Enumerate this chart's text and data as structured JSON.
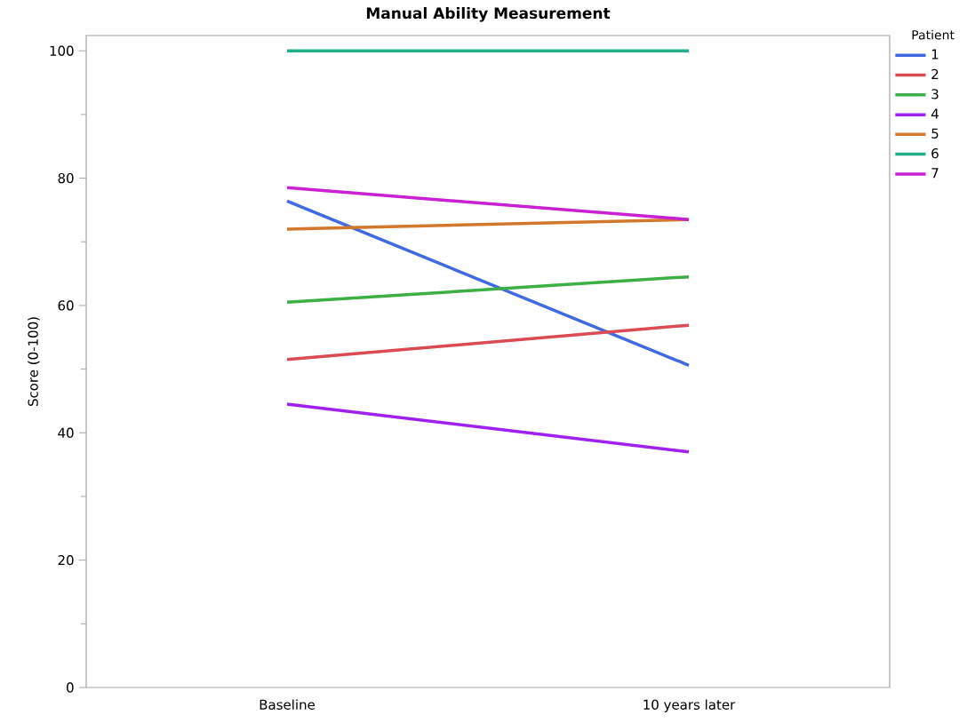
{
  "chart_data": {
    "type": "line",
    "title": "Manual Ability Measurement",
    "ylabel": "Score (0-100)",
    "legend_title": "Patient",
    "categories": [
      "Baseline",
      "10 years later"
    ],
    "ylim": [
      0,
      102.4
    ],
    "yticks": [
      0,
      20,
      40,
      60,
      80,
      100
    ],
    "grid": false,
    "legend": "top right",
    "marker": "none",
    "line_style": "solid",
    "series": [
      {
        "name": "1",
        "color": "#4169e1",
        "values": [
          76.4,
          50.6
        ]
      },
      {
        "name": "2",
        "color": "#dc4b55",
        "values": [
          51.5,
          56.9
        ]
      },
      {
        "name": "3",
        "color": "#3cb043",
        "values": [
          60.5,
          64.5
        ]
      },
      {
        "name": "4",
        "color": "#a020f0",
        "values": [
          44.5,
          37.0
        ]
      },
      {
        "name": "5",
        "color": "#d2782d",
        "values": [
          72.0,
          73.5
        ]
      },
      {
        "name": "6",
        "color": "#20b08a",
        "values": [
          100,
          100
        ]
      },
      {
        "name": "7",
        "color": "#c820d2",
        "values": [
          78.5,
          73.5
        ]
      }
    ]
  }
}
